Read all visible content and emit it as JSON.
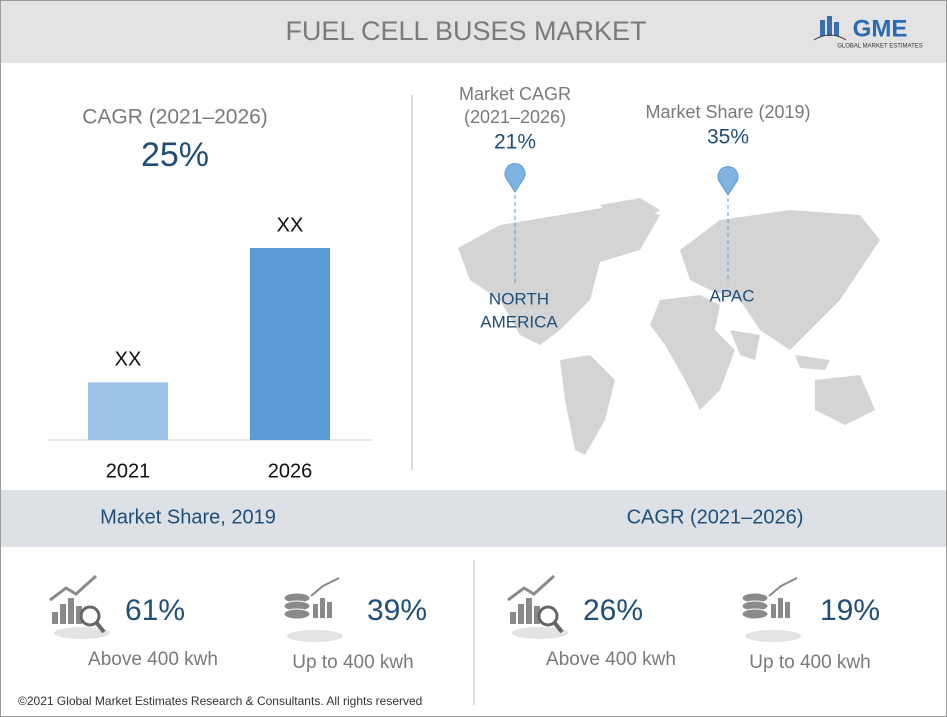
{
  "header": {
    "title": "FUEL CELL BUSES MARKET",
    "logo": "GME",
    "logo_sub": "GLOBAL MARKET ESTIMATES"
  },
  "cagr_panel": {
    "label": "CAGR (2021–2026)",
    "value": "25%"
  },
  "chart_data": {
    "type": "bar",
    "categories": [
      "2021",
      "2026"
    ],
    "values": [
      30,
      100
    ],
    "value_labels": [
      "XX",
      "XX"
    ],
    "colors": [
      "#9dc3e6",
      "#5b9bd5"
    ]
  },
  "map": {
    "pins": [
      {
        "title": [
          "Market CAGR",
          "(2021–2026)"
        ],
        "value": "21%",
        "region": [
          "NORTH",
          "AMERICA"
        ]
      },
      {
        "title": [
          "Market Share (2019)"
        ],
        "value": "35%",
        "region": [
          "APAC"
        ]
      }
    ]
  },
  "sections": [
    {
      "title": "Market Share, 2019",
      "items": [
        {
          "value": "61%",
          "label": "Above 400 kwh"
        },
        {
          "value": "39%",
          "label": "Up to 400 kwh"
        }
      ]
    },
    {
      "title": "CAGR (2021–2026)",
      "items": [
        {
          "value": "26%",
          "label": "Above 400 kwh"
        },
        {
          "value": "19%",
          "label": "Up to 400 kwh"
        }
      ]
    }
  ],
  "footer": "©2021 Global Market Estimates Research & Consultants. All rights reserved"
}
